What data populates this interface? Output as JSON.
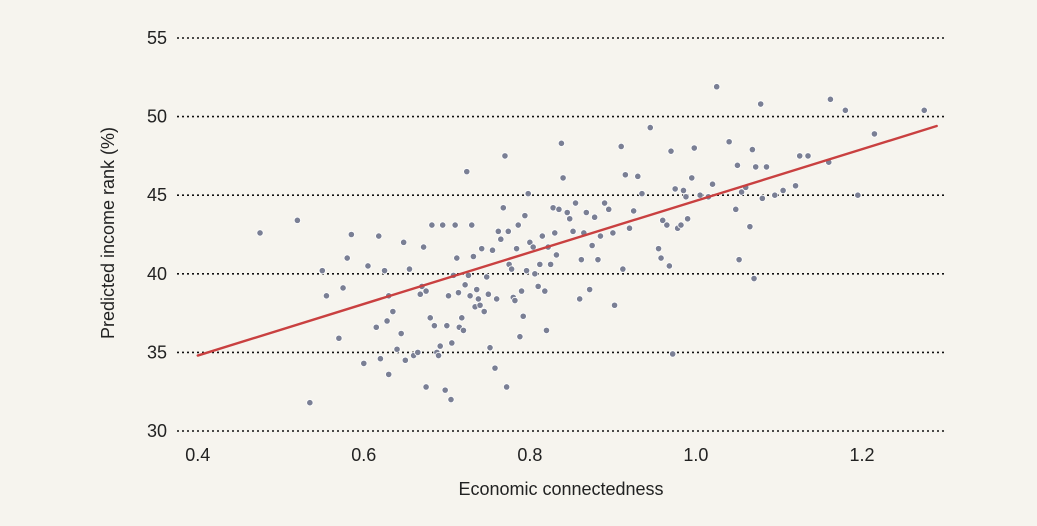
{
  "chart_data": {
    "type": "scatter",
    "title": "",
    "xlabel": "Economic connectedness",
    "ylabel": "Predicted income rank (%)",
    "xlim": [
      0.375,
      1.3
    ],
    "ylim": [
      30,
      55
    ],
    "x_ticks": [
      0.4,
      0.6,
      0.8,
      1.0,
      1.2
    ],
    "x_tick_labels": [
      "0.4",
      "0.6",
      "0.8",
      "1.0",
      "1.2"
    ],
    "y_ticks": [
      30,
      35,
      40,
      45,
      50,
      55
    ],
    "y_tick_labels": [
      "30",
      "35",
      "40",
      "45",
      "50",
      "55"
    ],
    "grid": "horizontal dotted",
    "legend": "none",
    "colors": {
      "points": "#7a7f94",
      "fit_line": "#c94040",
      "grid": "#111111",
      "background": "#f6f4ee"
    },
    "fit_line": {
      "x": [
        0.4,
        1.29
      ],
      "y": [
        34.8,
        49.4
      ]
    },
    "points": [
      [
        0.475,
        42.6
      ],
      [
        0.52,
        43.4
      ],
      [
        0.535,
        31.8
      ],
      [
        0.55,
        40.2
      ],
      [
        0.555,
        38.6
      ],
      [
        0.57,
        35.9
      ],
      [
        0.575,
        39.1
      ],
      [
        0.58,
        41.0
      ],
      [
        0.585,
        42.5
      ],
      [
        0.6,
        34.3
      ],
      [
        0.605,
        40.5
      ],
      [
        0.615,
        36.6
      ],
      [
        0.618,
        42.4
      ],
      [
        0.62,
        34.6
      ],
      [
        0.625,
        40.2
      ],
      [
        0.628,
        37.0
      ],
      [
        0.63,
        38.6
      ],
      [
        0.63,
        33.6
      ],
      [
        0.635,
        37.6
      ],
      [
        0.64,
        35.2
      ],
      [
        0.645,
        36.2
      ],
      [
        0.648,
        42.0
      ],
      [
        0.65,
        34.5
      ],
      [
        0.655,
        40.3
      ],
      [
        0.66,
        34.8
      ],
      [
        0.665,
        35.0
      ],
      [
        0.668,
        38.7
      ],
      [
        0.67,
        39.2
      ],
      [
        0.672,
        41.7
      ],
      [
        0.675,
        32.8
      ],
      [
        0.675,
        38.9
      ],
      [
        0.68,
        37.2
      ],
      [
        0.682,
        43.1
      ],
      [
        0.685,
        36.7
      ],
      [
        0.688,
        35.0
      ],
      [
        0.69,
        34.8
      ],
      [
        0.692,
        35.4
      ],
      [
        0.695,
        43.1
      ],
      [
        0.698,
        32.6
      ],
      [
        0.7,
        36.7
      ],
      [
        0.702,
        38.6
      ],
      [
        0.705,
        32.0
      ],
      [
        0.706,
        35.6
      ],
      [
        0.708,
        39.9
      ],
      [
        0.71,
        43.1
      ],
      [
        0.712,
        41.0
      ],
      [
        0.714,
        38.8
      ],
      [
        0.715,
        36.6
      ],
      [
        0.718,
        37.2
      ],
      [
        0.72,
        36.4
      ],
      [
        0.722,
        39.3
      ],
      [
        0.724,
        46.5
      ],
      [
        0.726,
        39.9
      ],
      [
        0.728,
        38.6
      ],
      [
        0.73,
        43.1
      ],
      [
        0.732,
        41.1
      ],
      [
        0.734,
        37.9
      ],
      [
        0.736,
        39.0
      ],
      [
        0.738,
        38.4
      ],
      [
        0.74,
        38.0
      ],
      [
        0.742,
        41.6
      ],
      [
        0.745,
        37.6
      ],
      [
        0.748,
        39.8
      ],
      [
        0.75,
        38.7
      ],
      [
        0.752,
        35.3
      ],
      [
        0.755,
        41.5
      ],
      [
        0.758,
        34.0
      ],
      [
        0.76,
        38.4
      ],
      [
        0.762,
        42.7
      ],
      [
        0.765,
        42.2
      ],
      [
        0.768,
        44.2
      ],
      [
        0.77,
        47.5
      ],
      [
        0.772,
        32.8
      ],
      [
        0.774,
        42.7
      ],
      [
        0.775,
        40.6
      ],
      [
        0.778,
        40.3
      ],
      [
        0.78,
        38.5
      ],
      [
        0.782,
        38.3
      ],
      [
        0.784,
        41.6
      ],
      [
        0.786,
        43.1
      ],
      [
        0.788,
        36.0
      ],
      [
        0.79,
        38.9
      ],
      [
        0.792,
        37.3
      ],
      [
        0.794,
        43.7
      ],
      [
        0.796,
        40.2
      ],
      [
        0.798,
        45.1
      ],
      [
        0.8,
        42.0
      ],
      [
        0.804,
        41.7
      ],
      [
        0.806,
        40.0
      ],
      [
        0.81,
        39.2
      ],
      [
        0.812,
        40.6
      ],
      [
        0.815,
        42.4
      ],
      [
        0.818,
        38.9
      ],
      [
        0.82,
        36.4
      ],
      [
        0.822,
        41.7
      ],
      [
        0.825,
        40.6
      ],
      [
        0.828,
        44.2
      ],
      [
        0.83,
        42.6
      ],
      [
        0.832,
        41.2
      ],
      [
        0.835,
        44.1
      ],
      [
        0.838,
        48.3
      ],
      [
        0.84,
        46.1
      ],
      [
        0.845,
        43.9
      ],
      [
        0.848,
        43.5
      ],
      [
        0.852,
        42.7
      ],
      [
        0.855,
        44.5
      ],
      [
        0.86,
        38.4
      ],
      [
        0.862,
        40.9
      ],
      [
        0.865,
        42.6
      ],
      [
        0.868,
        43.9
      ],
      [
        0.872,
        39.0
      ],
      [
        0.875,
        41.8
      ],
      [
        0.878,
        43.6
      ],
      [
        0.882,
        40.9
      ],
      [
        0.885,
        42.4
      ],
      [
        0.89,
        44.5
      ],
      [
        0.895,
        44.1
      ],
      [
        0.9,
        42.6
      ],
      [
        0.902,
        38.0
      ],
      [
        0.91,
        48.1
      ],
      [
        0.912,
        40.3
      ],
      [
        0.915,
        46.3
      ],
      [
        0.92,
        42.9
      ],
      [
        0.925,
        44.0
      ],
      [
        0.93,
        46.2
      ],
      [
        0.935,
        45.1
      ],
      [
        0.945,
        49.3
      ],
      [
        0.955,
        41.6
      ],
      [
        0.958,
        41.0
      ],
      [
        0.96,
        43.4
      ],
      [
        0.965,
        43.1
      ],
      [
        0.968,
        40.5
      ],
      [
        0.97,
        47.8
      ],
      [
        0.972,
        34.9
      ],
      [
        0.975,
        45.4
      ],
      [
        0.978,
        42.9
      ],
      [
        0.982,
        43.1
      ],
      [
        0.985,
        45.3
      ],
      [
        0.988,
        44.9
      ],
      [
        0.99,
        43.5
      ],
      [
        0.995,
        46.1
      ],
      [
        0.998,
        48.0
      ],
      [
        1.005,
        45.0
      ],
      [
        1.015,
        44.9
      ],
      [
        1.02,
        45.7
      ],
      [
        1.025,
        51.9
      ],
      [
        1.04,
        48.4
      ],
      [
        1.048,
        44.1
      ],
      [
        1.05,
        46.9
      ],
      [
        1.052,
        40.9
      ],
      [
        1.055,
        45.2
      ],
      [
        1.06,
        45.5
      ],
      [
        1.065,
        43.0
      ],
      [
        1.068,
        47.9
      ],
      [
        1.07,
        39.7
      ],
      [
        1.072,
        46.8
      ],
      [
        1.078,
        50.8
      ],
      [
        1.08,
        44.8
      ],
      [
        1.085,
        46.8
      ],
      [
        1.095,
        45.0
      ],
      [
        1.105,
        45.3
      ],
      [
        1.12,
        45.6
      ],
      [
        1.125,
        47.5
      ],
      [
        1.135,
        47.5
      ],
      [
        1.16,
        47.1
      ],
      [
        1.162,
        51.1
      ],
      [
        1.18,
        50.4
      ],
      [
        1.195,
        45.0
      ],
      [
        1.215,
        48.9
      ],
      [
        1.275,
        50.4
      ]
    ]
  }
}
